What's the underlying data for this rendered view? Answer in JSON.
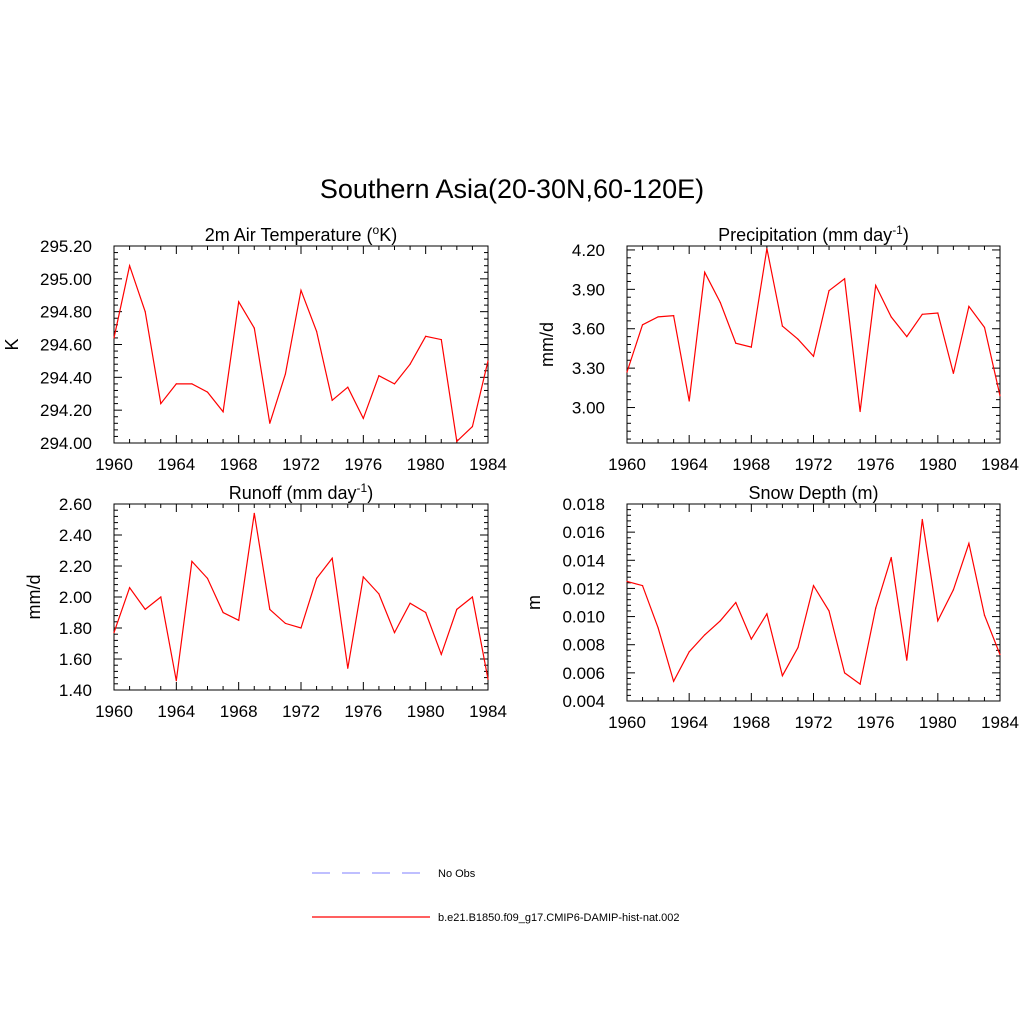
{
  "figure": {
    "title": "Southern Asia(20-30N,60-120E)",
    "legend": [
      {
        "label": "No Obs",
        "color": "#9999ff",
        "dash": true
      },
      {
        "label": "b.e21.B1850.f09_g17.CMIP6-DAMIP-hist-nat.002",
        "color": "#ff0000",
        "dash": false
      }
    ]
  },
  "chart_data": [
    {
      "type": "line",
      "title": "2m Air Temperature (",
      "title_sup": "o",
      "title_tail": "K)",
      "ylabel": "K",
      "xlabel": "",
      "x": [
        1960,
        1961,
        1962,
        1963,
        1964,
        1965,
        1966,
        1967,
        1968,
        1969,
        1970,
        1971,
        1972,
        1973,
        1974,
        1975,
        1976,
        1977,
        1978,
        1979,
        1980,
        1981,
        1982,
        1983,
        1984
      ],
      "series": [
        {
          "color": "#ff0000",
          "values": [
            294.64,
            295.08,
            294.8,
            294.24,
            294.36,
            294.36,
            294.31,
            294.19,
            294.86,
            294.7,
            294.12,
            294.42,
            294.93,
            294.68,
            294.26,
            294.34,
            294.15,
            294.41,
            294.36,
            294.48,
            294.65,
            294.63,
            294.01,
            294.1,
            294.5
          ]
        }
      ],
      "xlim": [
        1960,
        1984
      ],
      "ylim": [
        294.0,
        295.2
      ],
      "xticks": [
        1960,
        1964,
        1968,
        1972,
        1976,
        1980,
        1984
      ],
      "yticks": [
        294.0,
        294.2,
        294.4,
        294.6,
        294.8,
        295.0,
        295.2
      ],
      "ytick_labels": [
        "294.00",
        "294.20",
        "294.40",
        "294.60",
        "294.80",
        "295.00",
        "295.20"
      ],
      "grid": false
    },
    {
      "type": "line",
      "title": "Precipitation (mm day",
      "title_sup": "-1",
      "title_tail": ")",
      "ylabel": "mm/d",
      "xlabel": "",
      "x": [
        1960,
        1961,
        1962,
        1963,
        1964,
        1965,
        1966,
        1967,
        1968,
        1969,
        1970,
        1971,
        1972,
        1973,
        1974,
        1975,
        1976,
        1977,
        1978,
        1979,
        1980,
        1981,
        1982,
        1983,
        1984
      ],
      "series": [
        {
          "color": "#ff0000",
          "values": [
            3.27,
            3.63,
            3.69,
            3.7,
            3.05,
            4.03,
            3.8,
            3.49,
            3.46,
            4.21,
            3.62,
            3.52,
            3.39,
            3.89,
            3.98,
            2.97,
            3.93,
            3.69,
            3.54,
            3.71,
            3.72,
            3.26,
            3.77,
            3.61,
            3.09
          ]
        }
      ],
      "xlim": [
        1960,
        1984
      ],
      "ylim": [
        2.73,
        4.23
      ],
      "xticks": [
        1960,
        1964,
        1968,
        1972,
        1976,
        1980,
        1984
      ],
      "yticks": [
        3.0,
        3.3,
        3.6,
        3.9,
        4.2
      ],
      "ytick_labels": [
        "3.00",
        "3.30",
        "3.60",
        "3.90",
        "4.20"
      ],
      "grid": false
    },
    {
      "type": "line",
      "title": "Runoff (mm day",
      "title_sup": "-1",
      "title_tail": ")",
      "ylabel": "mm/d",
      "xlabel": "",
      "x": [
        1960,
        1961,
        1962,
        1963,
        1964,
        1965,
        1966,
        1967,
        1968,
        1969,
        1970,
        1971,
        1972,
        1973,
        1974,
        1975,
        1976,
        1977,
        1978,
        1979,
        1980,
        1981,
        1982,
        1983,
        1984
      ],
      "series": [
        {
          "color": "#ff0000",
          "values": [
            1.77,
            2.06,
            1.92,
            2.0,
            1.46,
            2.23,
            2.12,
            1.9,
            1.85,
            2.54,
            1.92,
            1.83,
            1.8,
            2.12,
            2.25,
            1.54,
            2.13,
            2.02,
            1.77,
            1.96,
            1.9,
            1.63,
            1.92,
            2.0,
            1.47
          ]
        }
      ],
      "xlim": [
        1960,
        1984
      ],
      "ylim": [
        1.4,
        2.6
      ],
      "xticks": [
        1960,
        1964,
        1968,
        1972,
        1976,
        1980,
        1984
      ],
      "yticks": [
        1.4,
        1.6,
        1.8,
        2.0,
        2.2,
        2.4,
        2.6
      ],
      "ytick_labels": [
        "1.40",
        "1.60",
        "1.80",
        "2.00",
        "2.20",
        "2.40",
        "2.60"
      ],
      "grid": false
    },
    {
      "type": "line",
      "title": "Snow Depth (m)",
      "title_sup": "",
      "title_tail": "",
      "ylabel": "m",
      "xlabel": "",
      "x": [
        1960,
        1961,
        1962,
        1963,
        1964,
        1965,
        1966,
        1967,
        1968,
        1969,
        1970,
        1971,
        1972,
        1973,
        1974,
        1975,
        1976,
        1977,
        1978,
        1979,
        1980,
        1981,
        1982,
        1983,
        1984
      ],
      "series": [
        {
          "color": "#ff0000",
          "values": [
            0.0125,
            0.0122,
            0.0092,
            0.0054,
            0.0075,
            0.0087,
            0.0097,
            0.011,
            0.0084,
            0.0102,
            0.0058,
            0.0078,
            0.0122,
            0.0104,
            0.006,
            0.0052,
            0.0106,
            0.0142,
            0.0069,
            0.0169,
            0.0097,
            0.0119,
            0.0152,
            0.0101,
            0.0073
          ]
        }
      ],
      "xlim": [
        1960,
        1984
      ],
      "ylim": [
        0.004,
        0.018
      ],
      "xticks": [
        1960,
        1964,
        1968,
        1972,
        1976,
        1980,
        1984
      ],
      "yticks": [
        0.004,
        0.006,
        0.008,
        0.01,
        0.012,
        0.014,
        0.016,
        0.018
      ],
      "ytick_labels": [
        "0.004",
        "0.006",
        "0.008",
        "0.010",
        "0.012",
        "0.014",
        "0.016",
        "0.018"
      ],
      "grid": false
    }
  ]
}
